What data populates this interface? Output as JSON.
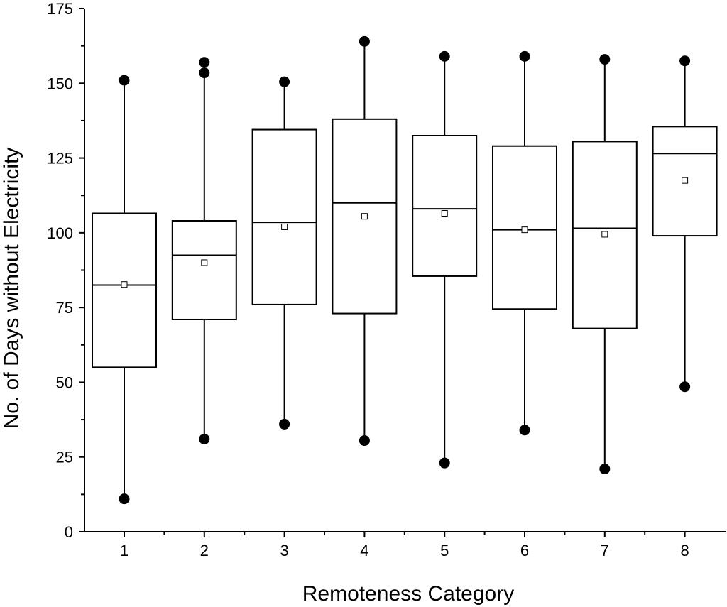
{
  "chart_data": {
    "type": "box",
    "xlabel": "Remoteness Category",
    "ylabel": "No. of Days without Electricity",
    "ylim": [
      0,
      175
    ],
    "yticks": [
      0,
      25,
      50,
      75,
      100,
      125,
      150,
      175
    ],
    "categories": [
      "1",
      "2",
      "3",
      "4",
      "5",
      "6",
      "7",
      "8"
    ],
    "boxes": [
      {
        "category": "1",
        "q1": 55,
        "median": 82.5,
        "q3": 106.5,
        "mean": 82.7,
        "whisker_low": 11,
        "whisker_high": 151,
        "outliers": [
          11,
          151
        ]
      },
      {
        "category": "2",
        "q1": 71,
        "median": 92.5,
        "q3": 104,
        "mean": 90,
        "whisker_low": 31,
        "whisker_high": 157,
        "outliers": [
          31,
          153.5,
          157
        ]
      },
      {
        "category": "3",
        "q1": 76,
        "median": 103.5,
        "q3": 134.5,
        "mean": 102,
        "whisker_low": 36,
        "whisker_high": 150.5,
        "outliers": [
          36,
          150.5
        ]
      },
      {
        "category": "4",
        "q1": 73,
        "median": 110,
        "q3": 138,
        "mean": 105.5,
        "whisker_low": 30.5,
        "whisker_high": 164,
        "outliers": [
          30.5,
          164
        ]
      },
      {
        "category": "5",
        "q1": 85.5,
        "median": 108,
        "q3": 132.5,
        "mean": 106.5,
        "whisker_low": 23,
        "whisker_high": 159,
        "outliers": [
          23,
          159
        ]
      },
      {
        "category": "6",
        "q1": 74.5,
        "median": 101,
        "q3": 129,
        "mean": 101,
        "whisker_low": 34,
        "whisker_high": 159,
        "outliers": [
          34,
          159
        ]
      },
      {
        "category": "7",
        "q1": 68,
        "median": 101.5,
        "q3": 130.5,
        "mean": 99.5,
        "whisker_low": 21,
        "whisker_high": 158,
        "outliers": [
          21,
          158
        ]
      },
      {
        "category": "8",
        "q1": 99,
        "median": 126.5,
        "q3": 135.5,
        "mean": 117.5,
        "whisker_low": 48.5,
        "whisker_high": 157.5,
        "outliers": [
          48.5,
          157.5
        ]
      }
    ],
    "grid": false,
    "legend": "none"
  }
}
